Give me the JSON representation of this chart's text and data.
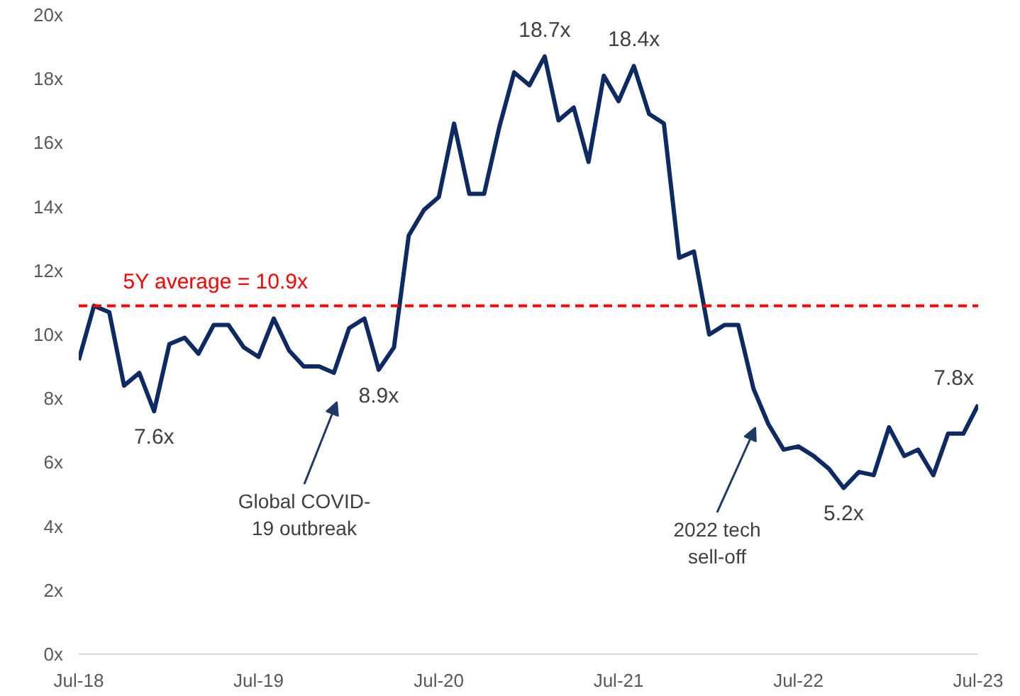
{
  "chart_data": {
    "type": "line",
    "x": [
      "2018-07",
      "2018-08",
      "2018-09",
      "2018-10",
      "2018-11",
      "2018-12",
      "2019-01",
      "2019-02",
      "2019-03",
      "2019-04",
      "2019-05",
      "2019-06",
      "2019-07",
      "2019-08",
      "2019-09",
      "2019-10",
      "2019-11",
      "2019-12",
      "2020-01",
      "2020-02",
      "2020-03",
      "2020-04",
      "2020-05",
      "2020-06",
      "2020-07",
      "2020-08",
      "2020-09",
      "2020-10",
      "2020-11",
      "2020-12",
      "2021-01",
      "2021-02",
      "2021-03",
      "2021-04",
      "2021-05",
      "2021-06",
      "2021-07",
      "2021-08",
      "2021-09",
      "2021-10",
      "2021-11",
      "2021-12",
      "2022-01",
      "2022-02",
      "2022-03",
      "2022-04",
      "2022-05",
      "2022-06",
      "2022-07",
      "2022-08",
      "2022-09",
      "2022-10",
      "2022-11",
      "2022-12",
      "2023-01",
      "2023-02",
      "2023-03",
      "2023-04",
      "2023-05",
      "2023-06",
      "2023-07"
    ],
    "series": [
      {
        "color": "#0d2a63",
        "values": [
          9.2,
          10.9,
          10.7,
          8.4,
          8.8,
          7.6,
          9.7,
          9.9,
          9.4,
          10.3,
          10.3,
          9.6,
          9.3,
          10.5,
          9.5,
          9.0,
          9.0,
          8.8,
          10.2,
          10.5,
          8.9,
          9.6,
          13.1,
          13.9,
          14.3,
          16.6,
          14.4,
          14.4,
          16.5,
          18.2,
          17.8,
          18.7,
          16.7,
          17.1,
          15.4,
          18.1,
          17.3,
          18.4,
          16.9,
          16.6,
          12.4,
          12.6,
          10.0,
          10.3,
          10.3,
          8.3,
          7.2,
          6.4,
          6.5,
          6.2,
          5.8,
          5.2,
          5.7,
          5.6,
          7.1,
          6.2,
          6.4,
          5.6,
          6.9,
          6.9,
          7.8
        ]
      }
    ],
    "ylim": [
      0,
      20
    ],
    "yticks": [
      {
        "value": 0,
        "label": "0x"
      },
      {
        "value": 2,
        "label": "2x"
      },
      {
        "value": 4,
        "label": "4x"
      },
      {
        "value": 6,
        "label": "6x"
      },
      {
        "value": 8,
        "label": "8x"
      },
      {
        "value": 10,
        "label": "10x"
      },
      {
        "value": 12,
        "label": "12x"
      },
      {
        "value": 14,
        "label": "14x"
      },
      {
        "value": 16,
        "label": "16x"
      },
      {
        "value": 18,
        "label": "18x"
      },
      {
        "value": 20,
        "label": "20x"
      }
    ],
    "xlim": [
      "2018-07",
      "2023-07"
    ],
    "xticks": [
      {
        "value": "2018-07",
        "label": "Jul-18"
      },
      {
        "value": "2019-07",
        "label": "Jul-19"
      },
      {
        "value": "2020-07",
        "label": "Jul-20"
      },
      {
        "value": "2021-07",
        "label": "Jul-21"
      },
      {
        "value": "2022-07",
        "label": "Jul-22"
      },
      {
        "value": "2023-07",
        "label": "Jul-23"
      }
    ],
    "grid": false,
    "line_style": "solid",
    "ref_lines": [
      {
        "axis": "y",
        "value": 10.9,
        "label": "5Y average = 10.9x",
        "color": "#ff0000",
        "line_style": "dashed"
      }
    ],
    "annotations": [
      {
        "text": "7.6x",
        "x": "2018-12",
        "y": 7.6
      },
      {
        "text": "8.9x",
        "x": "2020-03",
        "y": 8.9
      },
      {
        "text": "18.7x",
        "x": "2021-02",
        "y": 18.7
      },
      {
        "text": "18.4x",
        "x": "2021-08",
        "y": 18.4
      },
      {
        "text": "5.2x",
        "x": "2022-10",
        "y": 5.2
      },
      {
        "text": "7.8x",
        "x": "2023-07",
        "y": 7.8
      },
      "Global COVID-\n19 outbreak",
      "2022 tech\nsell-off"
    ]
  }
}
